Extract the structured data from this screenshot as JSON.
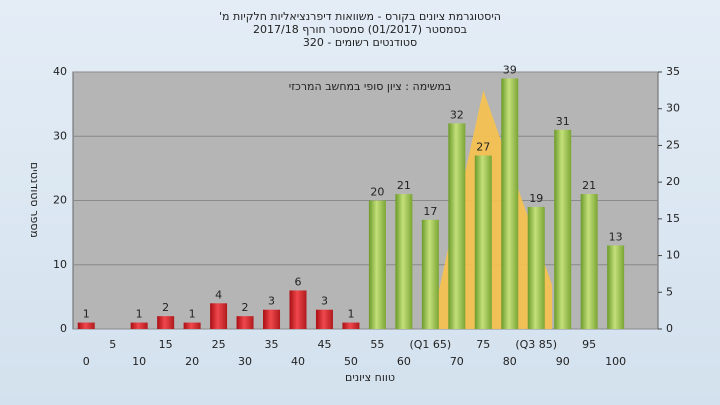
{
  "chart_data": {
    "type": "bar",
    "title": [
      "היסטוגרמת ציונים בקורס - משוואות דיפרנציאליות חלקיות מ'",
      "בסמסטר (01/2017) סמסטר חורף 2017/18",
      "סטודנטים רשומים - 320"
    ],
    "annotation": "במשימה : ציון סופי במחשב המרכזי",
    "xlabel": "טווח ציונים",
    "ylabel": "מספר סטודנטים",
    "categories": [
      "0",
      "5",
      "10",
      "15",
      "20",
      "25",
      "30",
      "35",
      "40",
      "45",
      "50",
      "55",
      "60",
      "(Q1 65)",
      "70",
      "75",
      "80",
      "(Q3 85)",
      "90",
      "95",
      "100"
    ],
    "x": [
      0,
      5,
      10,
      15,
      20,
      25,
      30,
      35,
      40,
      45,
      50,
      55,
      60,
      65,
      70,
      75,
      80,
      85,
      90,
      95,
      100
    ],
    "values": [
      1,
      null,
      1,
      2,
      1,
      4,
      2,
      3,
      6,
      3,
      1,
      20,
      21,
      17,
      32,
      27,
      39,
      19,
      31,
      21,
      13
    ],
    "colors": [
      "red",
      "red",
      "red",
      "red",
      "red",
      "red",
      "red",
      "red",
      "red",
      "red",
      "red",
      "green",
      "green",
      "green",
      "green",
      "green",
      "green",
      "green",
      "green",
      "green",
      "green"
    ],
    "overlay": {
      "type": "area",
      "axis": "y2",
      "x": [
        65,
        75,
        88
      ],
      "values": [
        0,
        32.5,
        6
      ],
      "color": "#f7c24e"
    },
    "xlim": [
      -2.5,
      108
    ],
    "ylim": [
      0,
      40
    ],
    "yticks": [
      0,
      10,
      20,
      30,
      40
    ],
    "y2lim": [
      0,
      35
    ],
    "y2ticks": [
      0,
      5,
      10,
      15,
      20,
      25,
      30,
      35
    ],
    "grid": true
  }
}
